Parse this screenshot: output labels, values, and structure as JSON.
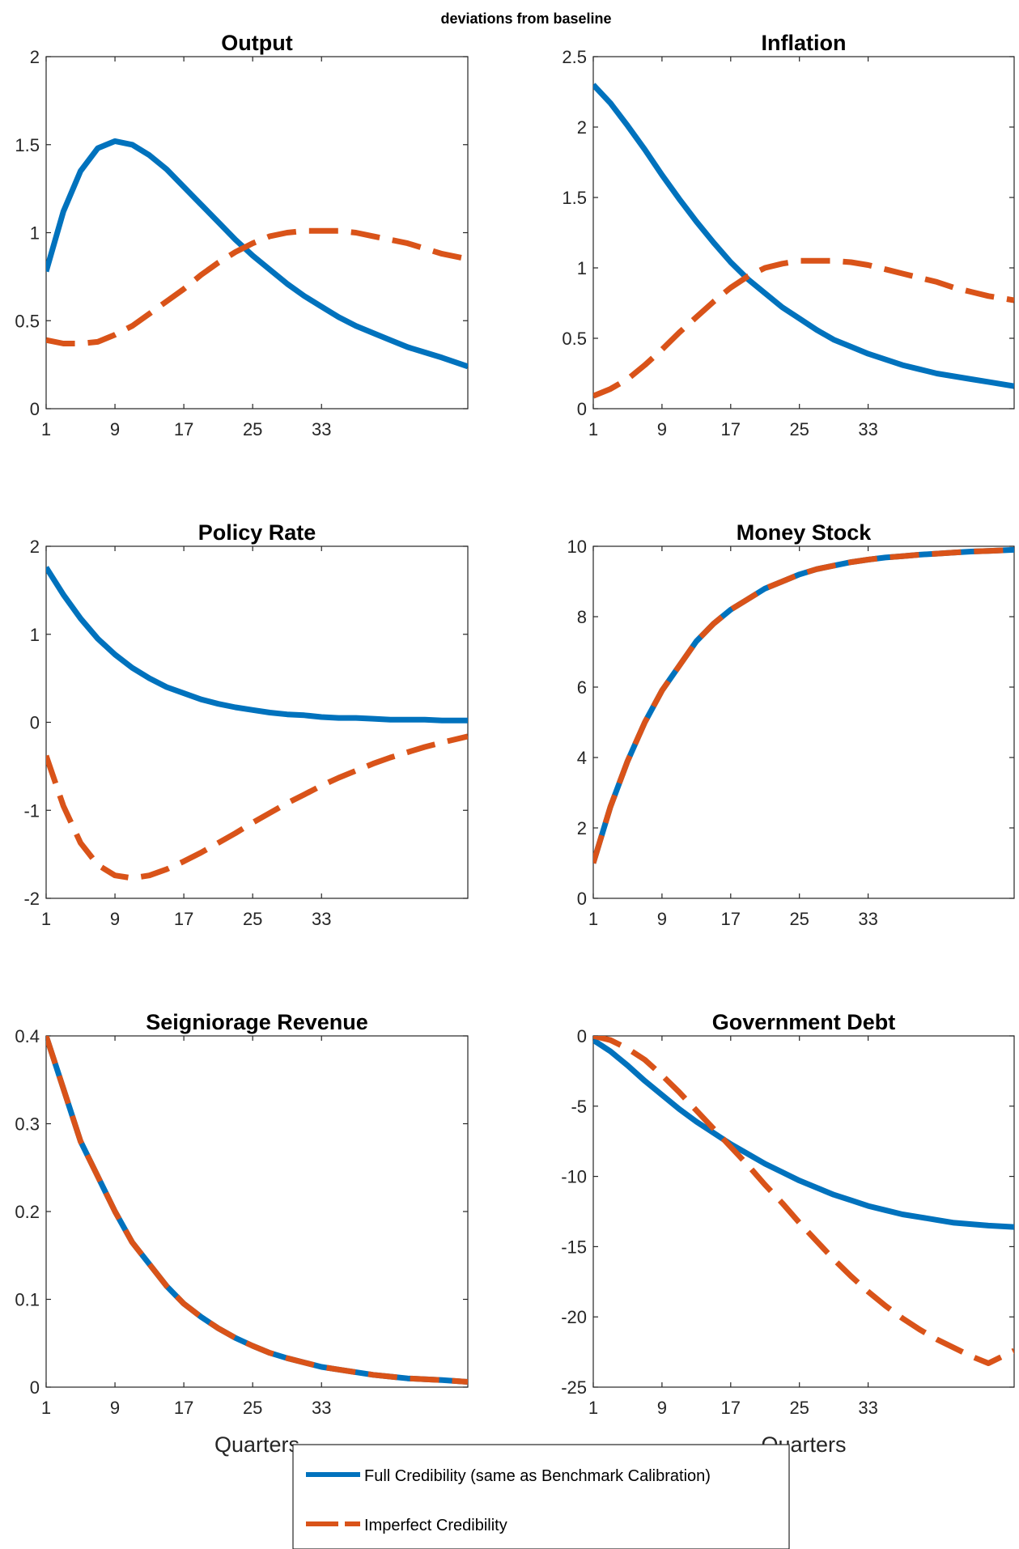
{
  "figure": {
    "subtitle": "deviations from baseline",
    "colors": {
      "full": "#0072BD",
      "imperfect": "#D95319"
    }
  },
  "legend": {
    "placement": "bottom-center",
    "entries": [
      "Full Credibility (same as Benchmark Calibration)",
      "Imperfect Credibility"
    ]
  },
  "chart_data": [
    {
      "type": "line",
      "title": "Output",
      "xlabel": "",
      "xlim": [
        1,
        50
      ],
      "ylim": [
        0,
        2
      ],
      "xticks": [
        1,
        9,
        17,
        25,
        33
      ],
      "yticks": [
        "0",
        "0.5",
        "1",
        "1.5",
        "2"
      ],
      "x": [
        1,
        3,
        5,
        7,
        9,
        11,
        13,
        15,
        17,
        19,
        21,
        23,
        25,
        27,
        29,
        31,
        33,
        35,
        37,
        39,
        41,
        43,
        45,
        47,
        50
      ],
      "series": [
        {
          "name": "Full Credibility (same as Benchmark Calibration)",
          "style": "solid",
          "values": [
            0.78,
            1.12,
            1.35,
            1.48,
            1.52,
            1.5,
            1.44,
            1.36,
            1.26,
            1.16,
            1.06,
            0.96,
            0.87,
            0.79,
            0.71,
            0.64,
            0.58,
            0.52,
            0.47,
            0.43,
            0.39,
            0.35,
            0.32,
            0.29,
            0.24
          ]
        },
        {
          "name": "Imperfect Credibility",
          "style": "dashed",
          "values": [
            0.39,
            0.37,
            0.37,
            0.38,
            0.42,
            0.47,
            0.54,
            0.61,
            0.68,
            0.76,
            0.83,
            0.89,
            0.94,
            0.98,
            1.0,
            1.01,
            1.01,
            1.01,
            1.0,
            0.98,
            0.96,
            0.94,
            0.91,
            0.88,
            0.85
          ]
        }
      ]
    },
    {
      "type": "line",
      "title": "Inflation",
      "xlabel": "",
      "xlim": [
        1,
        50
      ],
      "ylim": [
        0,
        2.5
      ],
      "xticks": [
        1,
        9,
        17,
        25,
        33
      ],
      "yticks": [
        "0",
        "0.5",
        "1",
        "1.5",
        "2",
        "2.5"
      ],
      "x": [
        1,
        3,
        5,
        7,
        9,
        11,
        13,
        15,
        17,
        19,
        21,
        23,
        25,
        27,
        29,
        31,
        33,
        35,
        37,
        39,
        41,
        43,
        45,
        47,
        50
      ],
      "series": [
        {
          "name": "Full Credibility (same as Benchmark Calibration)",
          "style": "solid",
          "values": [
            2.3,
            2.17,
            2.01,
            1.84,
            1.66,
            1.49,
            1.33,
            1.18,
            1.04,
            0.92,
            0.82,
            0.72,
            0.64,
            0.56,
            0.49,
            0.44,
            0.39,
            0.35,
            0.31,
            0.28,
            0.25,
            0.23,
            0.21,
            0.19,
            0.16
          ]
        },
        {
          "name": "Imperfect Credibility",
          "style": "dashed",
          "values": [
            0.09,
            0.14,
            0.21,
            0.31,
            0.42,
            0.54,
            0.65,
            0.76,
            0.86,
            0.94,
            1.0,
            1.03,
            1.05,
            1.05,
            1.05,
            1.04,
            1.02,
            0.99,
            0.96,
            0.93,
            0.9,
            0.86,
            0.83,
            0.8,
            0.77
          ]
        }
      ]
    },
    {
      "type": "line",
      "title": "Policy Rate",
      "xlabel": "",
      "xlim": [
        1,
        50
      ],
      "ylim": [
        -2,
        2
      ],
      "xticks": [
        1,
        9,
        17,
        25,
        33
      ],
      "yticks": [
        "-2",
        "-1",
        "0",
        "1",
        "2"
      ],
      "x": [
        1,
        3,
        5,
        7,
        9,
        11,
        13,
        15,
        17,
        19,
        21,
        23,
        25,
        27,
        29,
        31,
        33,
        35,
        37,
        39,
        41,
        43,
        45,
        47,
        50
      ],
      "series": [
        {
          "name": "Full Credibility (same as Benchmark Calibration)",
          "style": "solid",
          "values": [
            1.76,
            1.45,
            1.18,
            0.95,
            0.77,
            0.62,
            0.5,
            0.4,
            0.33,
            0.26,
            0.21,
            0.17,
            0.14,
            0.11,
            0.09,
            0.08,
            0.06,
            0.05,
            0.05,
            0.04,
            0.03,
            0.03,
            0.03,
            0.02,
            0.02
          ]
        },
        {
          "name": "Imperfect Credibility",
          "style": "dashed",
          "values": [
            -0.38,
            -0.95,
            -1.37,
            -1.62,
            -1.74,
            -1.77,
            -1.74,
            -1.67,
            -1.58,
            -1.48,
            -1.37,
            -1.26,
            -1.14,
            -1.03,
            -0.92,
            -0.82,
            -0.72,
            -0.63,
            -0.55,
            -0.47,
            -0.4,
            -0.34,
            -0.28,
            -0.23,
            -0.16
          ]
        }
      ]
    },
    {
      "type": "line",
      "title": "Money Stock",
      "xlabel": "",
      "xlim": [
        1,
        50
      ],
      "ylim": [
        0,
        10
      ],
      "xticks": [
        1,
        9,
        17,
        25,
        33
      ],
      "yticks": [
        "0",
        "2",
        "4",
        "6",
        "8",
        "10"
      ],
      "x": [
        1,
        3,
        5,
        7,
        9,
        11,
        13,
        15,
        17,
        19,
        21,
        23,
        25,
        27,
        29,
        31,
        33,
        35,
        37,
        39,
        41,
        43,
        45,
        47,
        50
      ],
      "series": [
        {
          "name": "Full Credibility (same as Benchmark Calibration)",
          "style": "solid",
          "values": [
            1.0,
            2.6,
            3.9,
            5.0,
            5.9,
            6.6,
            7.3,
            7.8,
            8.2,
            8.5,
            8.8,
            9.0,
            9.2,
            9.35,
            9.45,
            9.55,
            9.62,
            9.68,
            9.72,
            9.76,
            9.79,
            9.82,
            9.85,
            9.87,
            9.9
          ]
        },
        {
          "name": "Imperfect Credibility",
          "style": "dashed",
          "values": [
            1.0,
            2.6,
            3.9,
            5.0,
            5.9,
            6.6,
            7.3,
            7.8,
            8.2,
            8.5,
            8.8,
            9.0,
            9.2,
            9.35,
            9.45,
            9.55,
            9.62,
            9.68,
            9.72,
            9.76,
            9.79,
            9.82,
            9.85,
            9.87,
            9.9
          ]
        }
      ]
    },
    {
      "type": "line",
      "title": "Seigniorage Revenue",
      "xlabel": "Quarters",
      "xlim": [
        1,
        50
      ],
      "ylim": [
        0,
        0.4
      ],
      "xticks": [
        1,
        9,
        17,
        25,
        33
      ],
      "yticks": [
        "0",
        "0.1",
        "0.2",
        "0.3",
        "0.4"
      ],
      "x": [
        1,
        3,
        5,
        7,
        9,
        11,
        13,
        15,
        17,
        19,
        21,
        23,
        25,
        27,
        29,
        31,
        33,
        35,
        37,
        39,
        41,
        43,
        45,
        47,
        50
      ],
      "series": [
        {
          "name": "Full Credibility (same as Benchmark Calibration)",
          "style": "solid",
          "values": [
            0.4,
            0.34,
            0.28,
            0.24,
            0.2,
            0.165,
            0.14,
            0.115,
            0.095,
            0.08,
            0.067,
            0.056,
            0.047,
            0.039,
            0.033,
            0.028,
            0.023,
            0.02,
            0.017,
            0.014,
            0.012,
            0.01,
            0.009,
            0.008,
            0.006
          ]
        },
        {
          "name": "Imperfect Credibility",
          "style": "dashed",
          "values": [
            0.4,
            0.34,
            0.28,
            0.24,
            0.2,
            0.165,
            0.14,
            0.115,
            0.095,
            0.08,
            0.067,
            0.056,
            0.047,
            0.039,
            0.033,
            0.028,
            0.023,
            0.02,
            0.017,
            0.014,
            0.012,
            0.01,
            0.009,
            0.008,
            0.006
          ]
        }
      ]
    },
    {
      "type": "line",
      "title": "Government Debt",
      "xlabel": "Quarters",
      "xlim": [
        1,
        50
      ],
      "ylim": [
        -25,
        0
      ],
      "xticks": [
        1,
        9,
        17,
        25,
        33
      ],
      "yticks": [
        "-25",
        "-20",
        "-15",
        "-10",
        "-5",
        "0"
      ],
      "x": [
        1,
        3,
        5,
        7,
        9,
        11,
        13,
        15,
        17,
        19,
        21,
        23,
        25,
        27,
        29,
        31,
        33,
        35,
        37,
        39,
        41,
        43,
        45,
        47,
        50
      ],
      "series": [
        {
          "name": "Full Credibility (same as Benchmark Calibration)",
          "style": "solid",
          "values": [
            -0.3,
            -1.1,
            -2.1,
            -3.2,
            -4.2,
            -5.2,
            -6.1,
            -6.9,
            -7.7,
            -8.4,
            -9.1,
            -9.7,
            -10.3,
            -10.8,
            -11.3,
            -11.7,
            -12.1,
            -12.4,
            -12.7,
            -12.9,
            -13.1,
            -13.3,
            -13.4,
            -13.5,
            -13.6
          ]
        },
        {
          "name": "Imperfect Credibility",
          "style": "dashed",
          "values": [
            0.0,
            -0.3,
            -0.9,
            -1.7,
            -2.8,
            -4.0,
            -5.3,
            -6.6,
            -7.9,
            -9.2,
            -10.6,
            -11.9,
            -13.3,
            -14.6,
            -15.9,
            -17.1,
            -18.2,
            -19.2,
            -20.1,
            -20.9,
            -21.6,
            -22.2,
            -22.8,
            -23.3,
            -22.4
          ]
        }
      ]
    }
  ]
}
